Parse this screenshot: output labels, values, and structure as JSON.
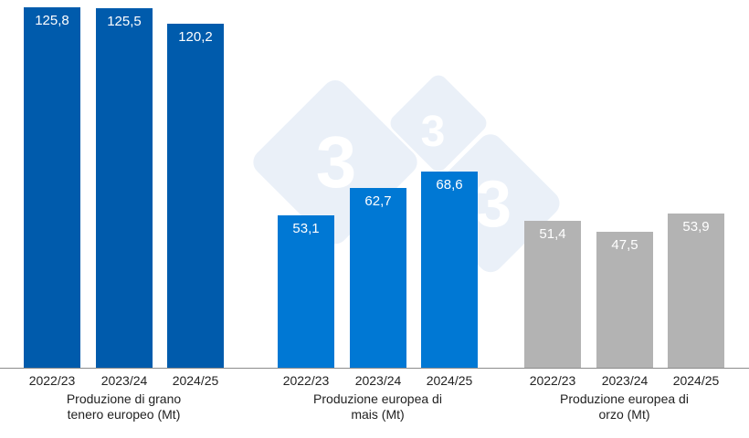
{
  "chart_data": {
    "type": "bar",
    "title": "",
    "xlabel": "",
    "ylabel": "",
    "grid": false,
    "legend": "none",
    "value_format": "comma decimal",
    "groups": [
      {
        "label_line1": "Produzione di grano",
        "label_line2": "tenero europeo (Mt)",
        "color": "#005BAC",
        "categories": [
          "2022/23",
          "2023/24",
          "2024/25"
        ],
        "values": [
          125.8,
          125.5,
          120.2
        ],
        "value_labels": [
          "125,8",
          "125,5",
          "120,2"
        ]
      },
      {
        "label_line1": "Produzione europea di",
        "label_line2": "mais (Mt)",
        "color": "#0078D4",
        "categories": [
          "2022/23",
          "2023/24",
          "2024/25"
        ],
        "values": [
          53.1,
          62.7,
          68.6
        ],
        "value_labels": [
          "53,1",
          "62,7",
          "68,6"
        ]
      },
      {
        "label_line1": "Produzione europea di",
        "label_line2": "orzo (Mt)",
        "color": "#B3B3B3",
        "categories": [
          "2022/23",
          "2023/24",
          "2024/25"
        ],
        "values": [
          51.4,
          47.5,
          53.9
        ],
        "value_labels": [
          "51,4",
          "47,5",
          "53,9"
        ]
      }
    ]
  },
  "watermark": {
    "glyph": "3",
    "color": "#E8EFF7"
  }
}
